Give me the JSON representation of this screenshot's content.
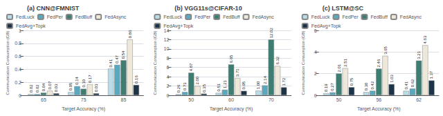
{
  "chart_data": [
    {
      "type": "bar",
      "title": "(a) CNN@FMNIST",
      "xlabel": "Target Accuracy (%)",
      "ylabel": "Communication Consumption (GB)",
      "categories": [
        "65",
        "75",
        "85"
      ],
      "series": [
        {
          "name": "FedLuck",
          "color": "#b8dce8",
          "values": [
            0.02,
            0.05,
            0.41
          ],
          "value_labels": [
            "0.02",
            "0.05",
            "0.41"
          ]
        },
        {
          "name": "FedPer",
          "color": "#5aa8be",
          "values": [
            0.02,
            0.14,
            0.47
          ],
          "value_labels": [
            "0.02",
            "0.14",
            "0.47"
          ]
        },
        {
          "name": "FedBuff",
          "color": "#3d7d72",
          "values": [
            0.04,
            0.1,
            0.54
          ],
          "value_labels": [
            "0.04",
            "0.10",
            "0.54"
          ]
        },
        {
          "name": "FedAsync",
          "color": "#ede8da",
          "values": [
            0.07,
            0.17,
            0.86
          ],
          "value_labels": [
            "0.07",
            "0.17",
            "0.86"
          ]
        },
        {
          "name": "FedAvg+Topk",
          "color": "#1c3348",
          "values": [
            0.03,
            0.03,
            0.16
          ],
          "value_labels": [
            "0.03",
            "0.03",
            "0.16"
          ]
        }
      ],
      "ylim": [
        0,
        1
      ],
      "yticks": [
        0,
        0.2,
        0.4,
        0.6,
        0.8,
        1
      ],
      "grid": true,
      "legend": "upper left",
      "data_labels": true
    },
    {
      "type": "bar",
      "title": "(b) VGG11s@CIFAR-10",
      "xlabel": "Target Accuracy (%)",
      "ylabel": "Communication Consumption (GB)",
      "categories": [
        "50",
        "60",
        "70"
      ],
      "series": [
        {
          "name": "FedLuck",
          "color": "#b8dce8",
          "values": [
            0.26,
            0.51,
            1.0
          ],
          "value_labels": [
            "0.26",
            "0.51",
            "1.00"
          ]
        },
        {
          "name": "FedPer",
          "color": "#5aa8be",
          "values": [
            0.73,
            1.21,
            2.14
          ],
          "value_labels": [
            "0.73",
            "1.21",
            "2.14"
          ]
        },
        {
          "name": "FedBuff",
          "color": "#3d7d72",
          "values": [
            4.87,
            6.65,
            12.02
          ],
          "value_labels": [
            "4.87",
            "6.65",
            "12.02"
          ]
        },
        {
          "name": "FedAsync",
          "color": "#ede8da",
          "values": [
            2.0,
            3.71,
            6.32
          ],
          "value_labels": [
            "2.00",
            "3.71",
            "6.32"
          ]
        },
        {
          "name": "FedAvg+Topk",
          "color": "#1c3348",
          "values": [
            0.35,
            0.95,
            1.72
          ],
          "value_labels": [
            "0.35",
            "0.95",
            "1.72"
          ]
        }
      ],
      "ylim": [
        0,
        14
      ],
      "yticks": [
        0,
        2,
        4,
        6,
        8,
        10,
        12,
        14
      ],
      "grid": true,
      "legend": "upper left",
      "data_labels": true
    },
    {
      "type": "bar",
      "title": "(c) LSTM@SC",
      "xlabel": "Target Accuracy (%)",
      "ylabel": "Communication Consumption (GB)",
      "categories": [
        "50",
        "56",
        "62"
      ],
      "series": [
        {
          "name": "FedLuck",
          "color": "#b8dce8",
          "values": [
            0.19,
            0.3,
            0.41
          ],
          "value_labels": [
            "0.19",
            "0.30",
            "0.41"
          ]
        },
        {
          "name": "FedPer",
          "color": "#5aa8be",
          "values": [
            0.27,
            0.42,
            0.62
          ],
          "value_labels": [
            "0.27",
            "0.42",
            "0.62"
          ]
        },
        {
          "name": "FedBuff",
          "color": "#3d7d72",
          "values": [
            2.01,
            2.46,
            3.21
          ],
          "value_labels": [
            "2.01",
            "2.46",
            "3.21"
          ]
        },
        {
          "name": "FedAsync",
          "color": "#ede8da",
          "values": [
            2.51,
            3.65,
            4.63
          ],
          "value_labels": [
            "2.51",
            "3.65",
            "4.63"
          ]
        },
        {
          "name": "FedAvg+Topk",
          "color": "#1c3348",
          "values": [
            0.75,
            1.03,
            1.37
          ],
          "value_labels": [
            "0.75",
            "1.03",
            "1.37"
          ]
        }
      ],
      "ylim": [
        0,
        6
      ],
      "yticks": [
        0,
        2,
        4,
        6
      ],
      "grid": true,
      "legend": "upper left",
      "data_labels": true
    }
  ]
}
